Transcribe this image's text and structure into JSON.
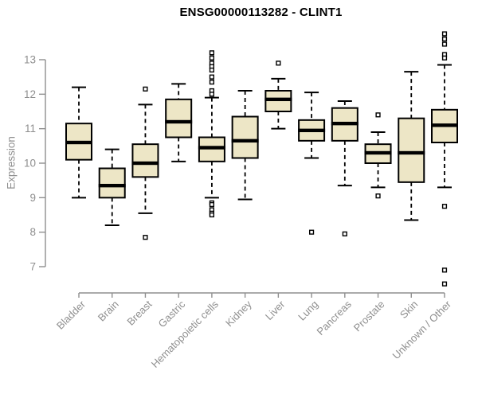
{
  "chart_data": {
    "type": "boxplot",
    "title": "ENSG00000113282 - CLINT1",
    "ylabel": "Expression",
    "xlabel": "",
    "ylim": [
      7,
      13
    ],
    "yticks": [
      7,
      8,
      9,
      10,
      11,
      12,
      13
    ],
    "grid": false,
    "legend": "none",
    "categories": [
      "Bladder",
      "Brain",
      "Breast",
      "Gastric",
      "Hematopoietic cells",
      "Kidney",
      "Liver",
      "Lung",
      "Pancreas",
      "Prostate",
      "Skin",
      "Unknown / Other"
    ],
    "series": [
      {
        "name": "Bladder",
        "low": 9.0,
        "q1": 10.1,
        "median": 10.6,
        "q3": 11.15,
        "high": 12.2,
        "outliers": []
      },
      {
        "name": "Brain",
        "low": 8.2,
        "q1": 9.0,
        "median": 9.35,
        "q3": 9.85,
        "high": 10.4,
        "outliers": []
      },
      {
        "name": "Breast",
        "low": 8.55,
        "q1": 9.6,
        "median": 10.0,
        "q3": 10.55,
        "high": 11.7,
        "outliers": [
          12.15,
          7.85
        ]
      },
      {
        "name": "Gastric",
        "low": 10.05,
        "q1": 10.75,
        "median": 11.2,
        "q3": 11.85,
        "high": 12.3,
        "outliers": []
      },
      {
        "name": "Hematopoietic cells",
        "low": 9.0,
        "q1": 10.05,
        "median": 10.45,
        "q3": 10.75,
        "high": 11.9,
        "outliers": [
          13.2,
          13.05,
          12.9,
          12.8,
          12.7,
          12.5,
          12.35,
          12.1,
          12.0,
          8.85,
          8.8,
          8.65,
          8.55,
          8.5
        ]
      },
      {
        "name": "Kidney",
        "low": 8.95,
        "q1": 10.15,
        "median": 10.65,
        "q3": 11.35,
        "high": 12.1,
        "outliers": []
      },
      {
        "name": "Liver",
        "low": 11.0,
        "q1": 11.5,
        "median": 11.85,
        "q3": 12.1,
        "high": 12.45,
        "outliers": [
          12.9
        ]
      },
      {
        "name": "Lung",
        "low": 10.15,
        "q1": 10.65,
        "median": 10.95,
        "q3": 11.25,
        "high": 12.05,
        "outliers": [
          8.0
        ]
      },
      {
        "name": "Pancreas",
        "low": 9.35,
        "q1": 10.65,
        "median": 11.15,
        "q3": 11.6,
        "high": 11.8,
        "outliers": [
          7.95
        ]
      },
      {
        "name": "Prostate",
        "low": 9.3,
        "q1": 10.0,
        "median": 10.3,
        "q3": 10.55,
        "high": 10.9,
        "outliers": [
          11.4,
          9.05
        ]
      },
      {
        "name": "Skin",
        "low": 8.35,
        "q1": 9.45,
        "median": 10.3,
        "q3": 11.3,
        "high": 12.65,
        "outliers": []
      },
      {
        "name": "Unknown / Other",
        "low": 9.3,
        "q1": 10.6,
        "median": 11.1,
        "q3": 11.55,
        "high": 12.85,
        "outliers": [
          13.75,
          13.6,
          13.45,
          13.15,
          13.05,
          8.75,
          6.9,
          6.5
        ]
      }
    ],
    "colors": {
      "box_fill": "#EDE6C6",
      "box_stroke": "#000000",
      "median": "#000000",
      "outlier_fill": "#ffffff",
      "axis": "#8f8f8f",
      "title": "#000000",
      "background": "#ffffff"
    }
  }
}
